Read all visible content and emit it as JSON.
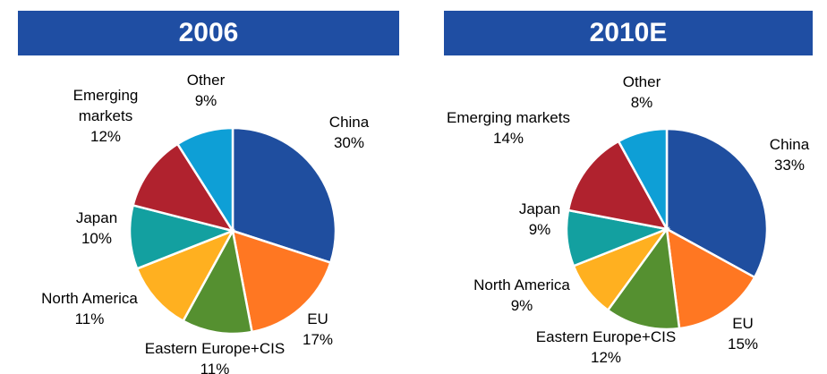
{
  "chart_data": [
    {
      "type": "pie",
      "title": "2006",
      "categories": [
        "China",
        "EU",
        "Eastern Europe+CIS",
        "North America",
        "Japan",
        "Emerging markets",
        "Other"
      ],
      "values": [
        30,
        17,
        11,
        11,
        10,
        12,
        9
      ],
      "value_labels": [
        "30%",
        "17%",
        "11%",
        "11%",
        "10%",
        "12%",
        "9%"
      ],
      "colors": [
        "#1f4e9f",
        "#ff7722",
        "#559030",
        "#ffb020",
        "#13a0a0",
        "#b0222e",
        "#0e9fd6"
      ]
    },
    {
      "type": "pie",
      "title": "2010E",
      "categories": [
        "China",
        "EU",
        "Eastern Europe+CIS",
        "North America",
        "Japan",
        "Emerging markets",
        "Other"
      ],
      "values": [
        33,
        15,
        12,
        9,
        9,
        14,
        8
      ],
      "value_labels": [
        "33%",
        "15%",
        "12%",
        "9%",
        "9%",
        "14%",
        "8%"
      ],
      "colors": [
        "#1f4e9f",
        "#ff7722",
        "#559030",
        "#ffb020",
        "#13a0a0",
        "#b0222e",
        "#0e9fd6"
      ]
    }
  ]
}
